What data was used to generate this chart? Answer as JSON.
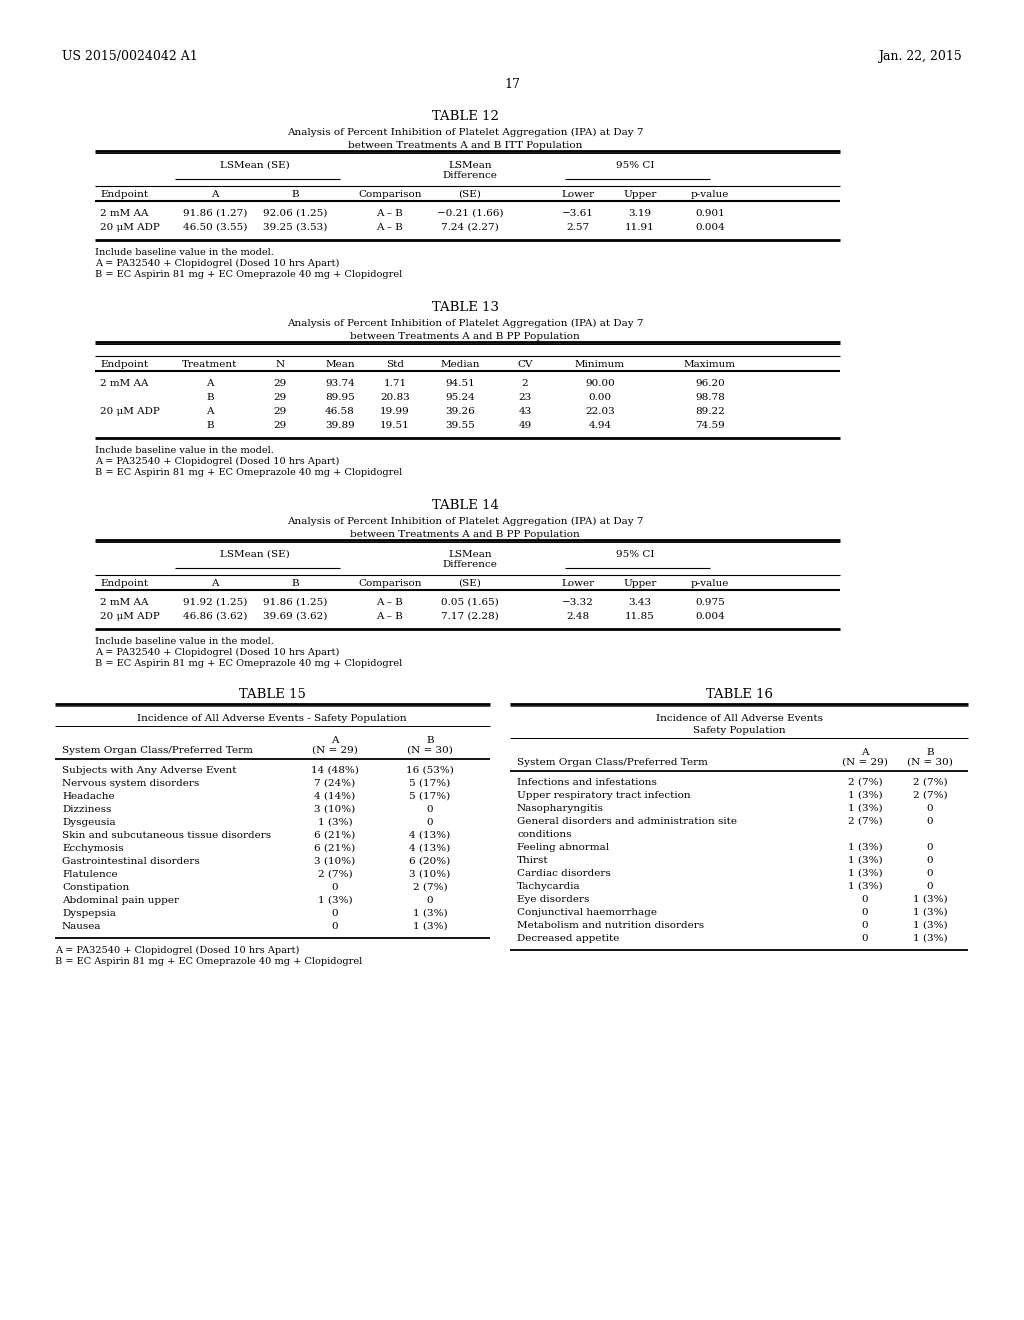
{
  "header_left": "US 2015/0024042 A1",
  "header_right": "Jan. 22, 2015",
  "page_number": "17",
  "background_color": "#ffffff",
  "table12": {
    "title": "TABLE 12",
    "subtitle1": "Analysis of Percent Inhibition of Platelet Aggregation (IPA) at Day 7",
    "subtitle2": "between Treatments A and B ITT Population",
    "rows": [
      [
        "2 mM AA",
        "91.86 (1.27)",
        "92.06 (1.25)",
        "A – B",
        "−0.21 (1.66)",
        "−3.61",
        "3.19",
        "0.901"
      ],
      [
        "20 μM ADP",
        "46.50 (3.55)",
        "39.25 (3.53)",
        "A – B",
        "7.24 (2.27)",
        "2.57",
        "11.91",
        "0.004"
      ]
    ],
    "footnotes": [
      "Include baseline value in the model.",
      "A = PA32540 + Clopidogrel (Dosed 10 hrs Apart)",
      "B = EC Aspirin 81 mg + EC Omeprazole 40 mg + Clopidogrel"
    ]
  },
  "table13": {
    "title": "TABLE 13",
    "subtitle1": "Analysis of Percent Inhibition of Platelet Aggregation (IPA) at Day 7",
    "subtitle2": "between Treatments A and B PP Population",
    "rows": [
      [
        "2 mM AA",
        "A",
        "29",
        "93.74",
        "1.71",
        "94.51",
        "2",
        "90.00",
        "96.20"
      ],
      [
        "",
        "B",
        "29",
        "89.95",
        "20.83",
        "95.24",
        "23",
        "0.00",
        "98.78"
      ],
      [
        "20 μM ADP",
        "A",
        "29",
        "46.58",
        "19.99",
        "39.26",
        "43",
        "22.03",
        "89.22"
      ],
      [
        "",
        "B",
        "29",
        "39.89",
        "19.51",
        "39.55",
        "49",
        "4.94",
        "74.59"
      ]
    ],
    "footnotes": [
      "Include baseline value in the model.",
      "A = PA32540 + Clopidogrel (Dosed 10 hrs Apart)",
      "B = EC Aspirin 81 mg + EC Omeprazole 40 mg + Clopidogrel"
    ]
  },
  "table14": {
    "title": "TABLE 14",
    "subtitle1": "Analysis of Percent Inhibition of Platelet Aggregation (IPA) at Day 7",
    "subtitle2": "between Treatments A and B PP Population",
    "rows": [
      [
        "2 mM AA",
        "91.92 (1.25)",
        "91.86 (1.25)",
        "A – B",
        "0.05 (1.65)",
        "−3.32",
        "3.43",
        "0.975"
      ],
      [
        "20 μM ADP",
        "46.86 (3.62)",
        "39.69 (3.62)",
        "A – B",
        "7.17 (2.28)",
        "2.48",
        "11.85",
        "0.004"
      ]
    ],
    "footnotes": [
      "Include baseline value in the model.",
      "A = PA32540 + Clopidogrel (Dosed 10 hrs Apart)",
      "B = EC Aspirin 81 mg + EC Omeprazole 40 mg + Clopidogrel"
    ]
  },
  "table15": {
    "title": "TABLE 15",
    "subtitle1": "Incidence of All Adverse Events - Safety Population",
    "rows": [
      [
        "Subjects with Any Adverse Event",
        "14 (48%)",
        "16 (53%)"
      ],
      [
        "Nervous system disorders",
        "7 (24%)",
        "5 (17%)"
      ],
      [
        "Headache",
        "4 (14%)",
        "5 (17%)"
      ],
      [
        "Dizziness",
        "3 (10%)",
        "0"
      ],
      [
        "Dysgeusia",
        "1 (3%)",
        "0"
      ],
      [
        "Skin and subcutaneous tissue disorders",
        "6 (21%)",
        "4 (13%)"
      ],
      [
        "Ecchymosis",
        "6 (21%)",
        "4 (13%)"
      ],
      [
        "Gastrointestinal disorders",
        "3 (10%)",
        "6 (20%)"
      ],
      [
        "Flatulence",
        "2 (7%)",
        "3 (10%)"
      ],
      [
        "Constipation",
        "0",
        "2 (7%)"
      ],
      [
        "Abdominal pain upper",
        "1 (3%)",
        "0"
      ],
      [
        "Dyspepsia",
        "0",
        "1 (3%)"
      ],
      [
        "Nausea",
        "0",
        "1 (3%)"
      ]
    ],
    "footnotes": [
      "A = PA32540 + Clopidogrel (Dosed 10 hrs Apart)",
      "B = EC Aspirin 81 mg + EC Omeprazole 40 mg + Clopidogrel"
    ]
  },
  "table16": {
    "title": "TABLE 16",
    "subtitle1": "Incidence of All Adverse Events",
    "subtitle2": "Safety Population",
    "rows": [
      [
        "Infections and infestations",
        "2 (7%)",
        "2 (7%)"
      ],
      [
        "Upper respiratory tract infection",
        "1 (3%)",
        "2 (7%)"
      ],
      [
        "Nasopharyngitis",
        "1 (3%)",
        "0"
      ],
      [
        "General disorders and administration site",
        "2 (7%)",
        "0"
      ],
      [
        "conditions",
        "",
        ""
      ],
      [
        "Feeling abnormal",
        "1 (3%)",
        "0"
      ],
      [
        "Thirst",
        "1 (3%)",
        "0"
      ],
      [
        "Cardiac disorders",
        "1 (3%)",
        "0"
      ],
      [
        "Tachycardia",
        "1 (3%)",
        "0"
      ],
      [
        "Eye disorders",
        "0",
        "1 (3%)"
      ],
      [
        "Conjunctival haemorrhage",
        "0",
        "1 (3%)"
      ],
      [
        "Metabolism and nutrition disorders",
        "0",
        "1 (3%)"
      ],
      [
        "Decreased appetite",
        "0",
        "1 (3%)"
      ]
    ]
  }
}
